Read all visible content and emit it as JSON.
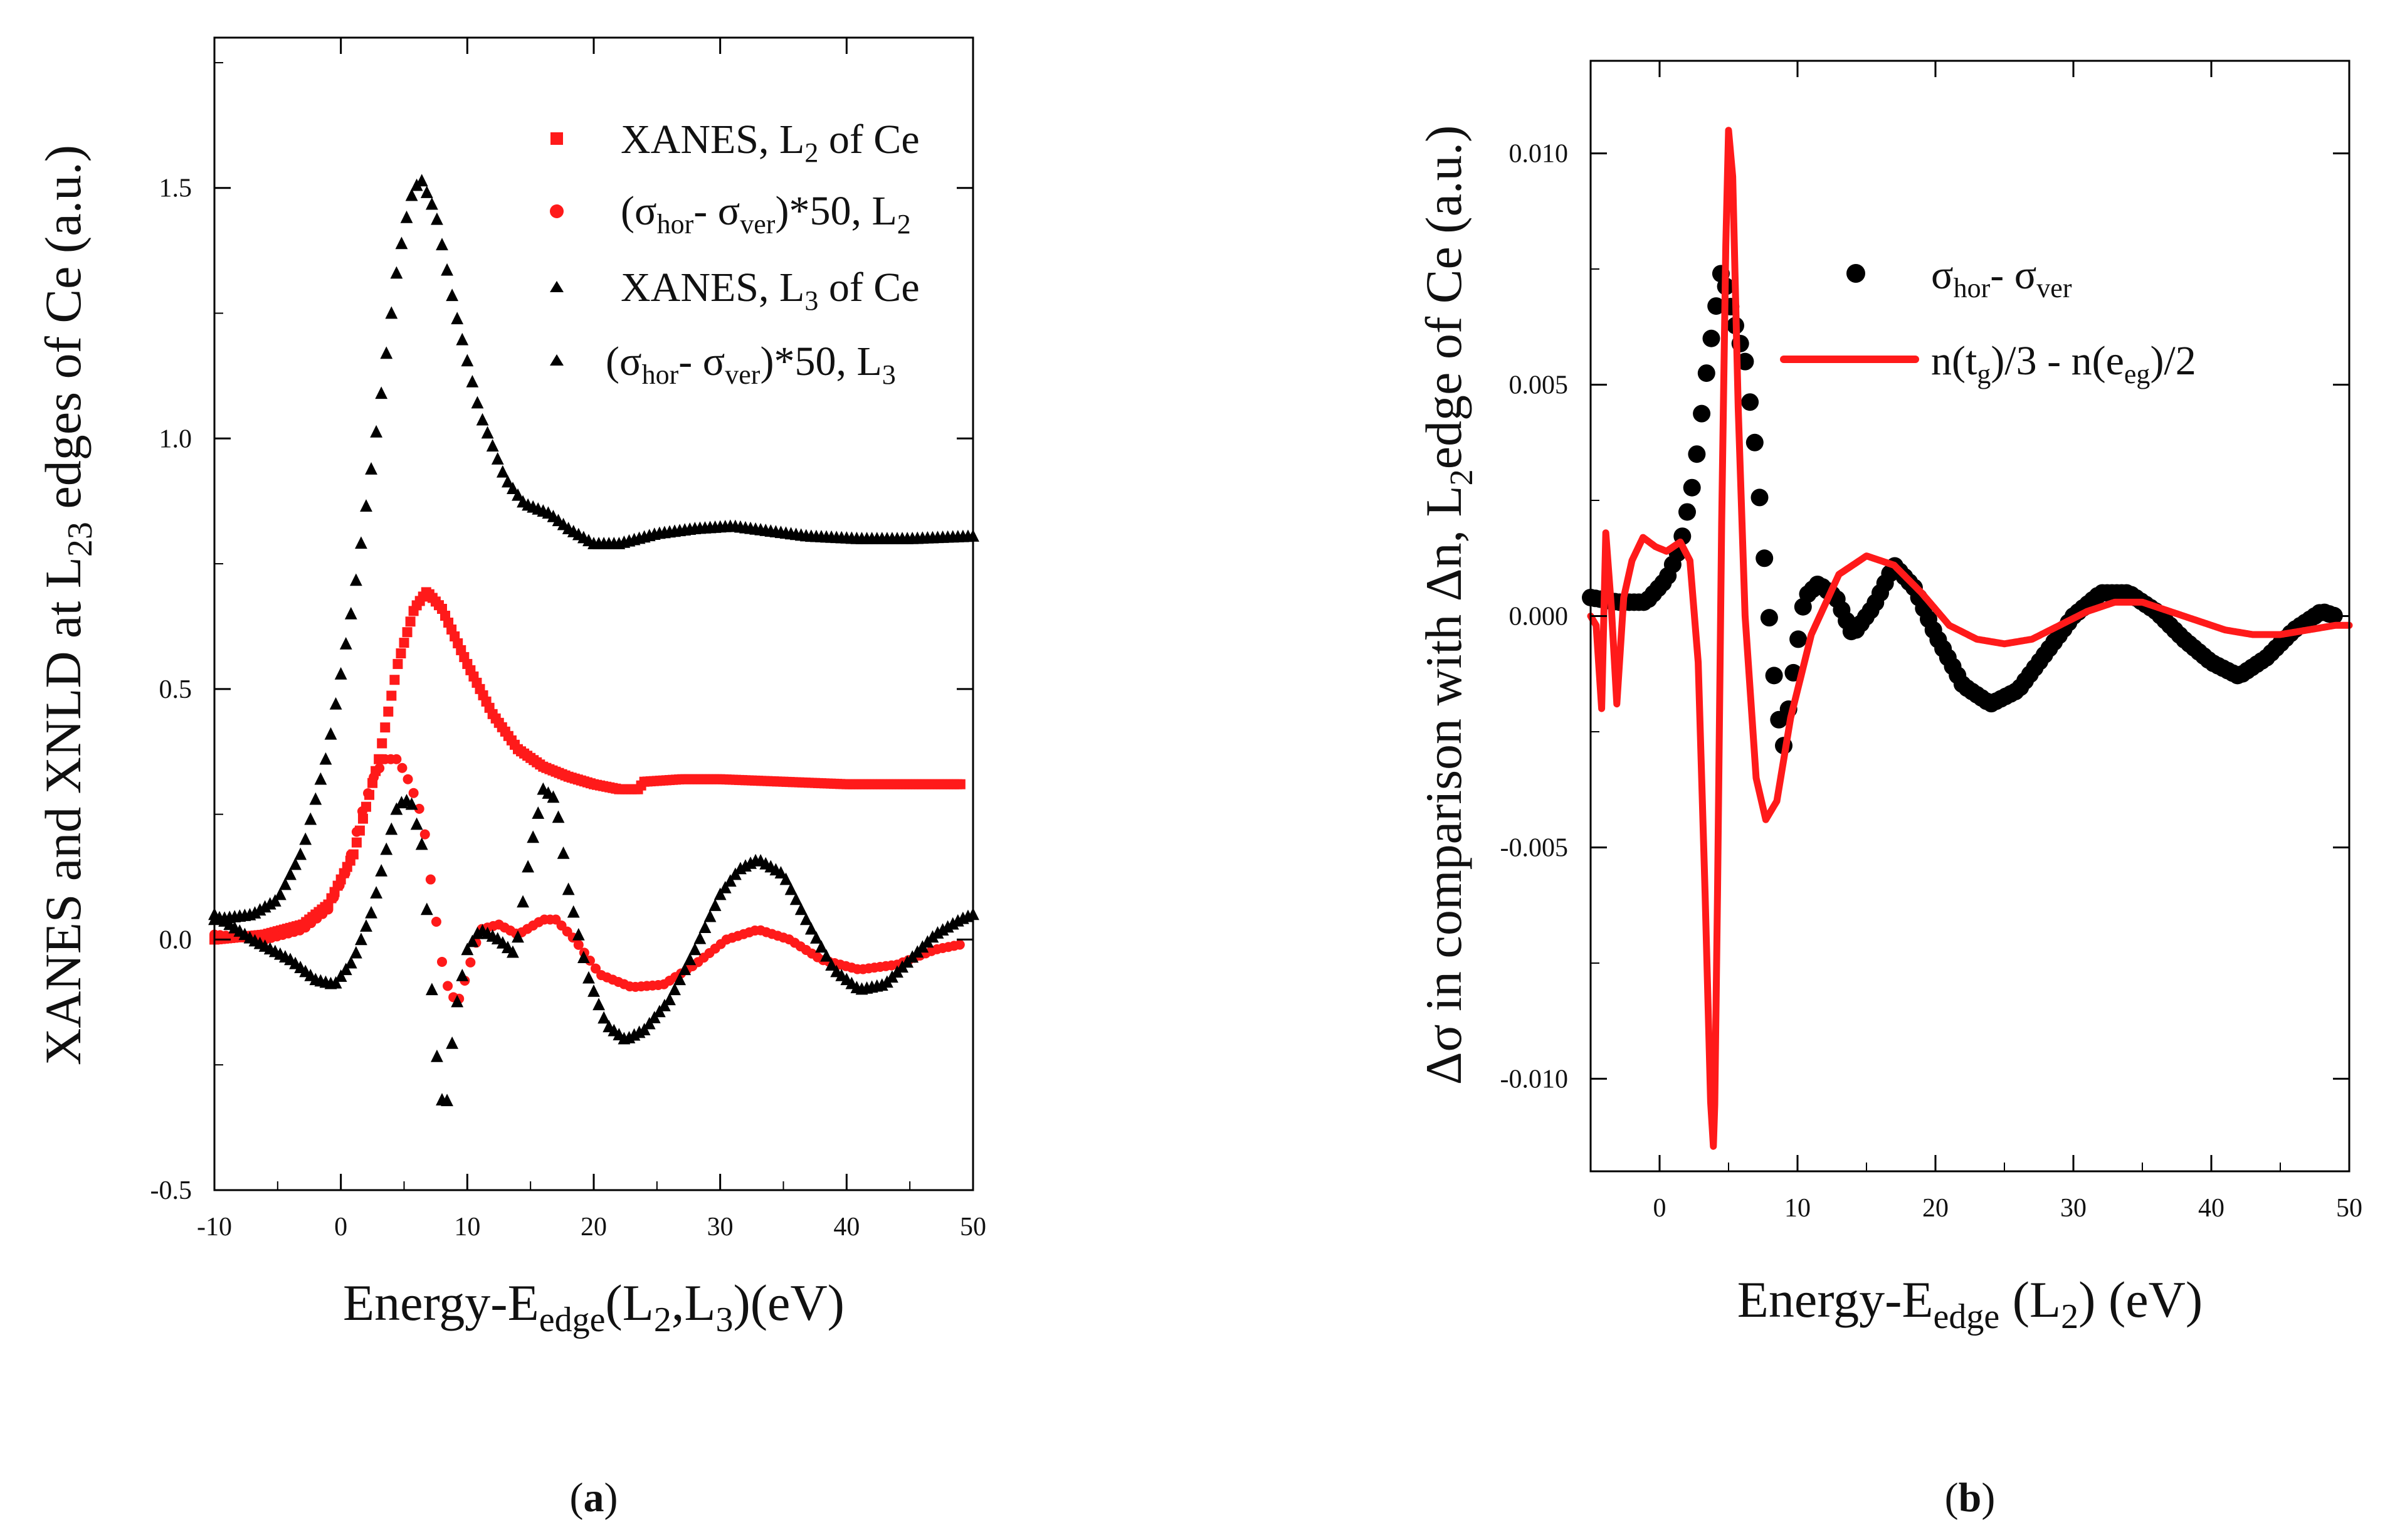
{
  "colors": {
    "red": "#ff1a1a",
    "black": "#000000"
  },
  "chart_data": [
    {
      "type": "scatter",
      "panel": "a",
      "caption": {
        "open": "(",
        "letter": "a",
        "close": ")"
      },
      "xlim": [
        -10,
        50
      ],
      "ylim": [
        -0.5,
        1.8
      ],
      "xticks": [
        "-10",
        "0",
        "10",
        "20",
        "30",
        "40",
        "50"
      ],
      "yticks": [
        "-0.5",
        "0.0",
        "0.5",
        "1.0",
        "1.5"
      ],
      "xlabel": {
        "a": "Energy-E",
        "sub1": "edge",
        "b": "(L",
        "sub2": "2",
        "c": ",L",
        "sub3": "3",
        "d": ")(eV)"
      },
      "ylabel": {
        "a": "XANES and XNLD at L",
        "sub": "23",
        "b": " edges of Ce (a.u.)"
      },
      "legend": [
        {
          "marker": "square",
          "color": "#ff1a1a",
          "parts": [
            "XANES, L",
            "2",
            " of Ce"
          ]
        },
        {
          "marker": "circle",
          "color": "#ff1a1a",
          "parts": [
            "(σ",
            "hor",
            "- σ",
            "ver",
            ")*50, L",
            "2"
          ]
        },
        {
          "marker": "triangle",
          "color": "#000000",
          "parts": [
            "XANES, L",
            "3",
            " of Ce"
          ]
        },
        {
          "marker": "triangle",
          "color": "#000000",
          "parts": [
            "(σ",
            "hor",
            "- σ",
            "ver",
            ")*50, L",
            "3"
          ]
        }
      ],
      "series": [
        {
          "name": "XANES, L3 of Ce",
          "marker": "triangle",
          "color": "#000000",
          "step": 0.4,
          "points": [
            [
              -10,
              0.04
            ],
            [
              -7,
              0.05
            ],
            [
              -5,
              0.08
            ],
            [
              -3,
              0.18
            ],
            [
              -1,
              0.38
            ],
            [
              1,
              0.68
            ],
            [
              3,
              1.05
            ],
            [
              4.5,
              1.35
            ],
            [
              5.5,
              1.48
            ],
            [
              6.3,
              1.52
            ],
            [
              7.5,
              1.45
            ],
            [
              9,
              1.26
            ],
            [
              11,
              1.05
            ],
            [
              13,
              0.92
            ],
            [
              14.5,
              0.87
            ],
            [
              16.5,
              0.85
            ],
            [
              18,
              0.82
            ],
            [
              20,
              0.79
            ],
            [
              22,
              0.79
            ],
            [
              25,
              0.81
            ],
            [
              28,
              0.82
            ],
            [
              31,
              0.825
            ],
            [
              34,
              0.815
            ],
            [
              37,
              0.805
            ],
            [
              41,
              0.8
            ],
            [
              45,
              0.8
            ],
            [
              50,
              0.805
            ]
          ]
        },
        {
          "name": "XANES, L2 of Ce",
          "marker": "square",
          "color": "#ff1a1a",
          "step": 0.25,
          "points": [
            [
              -10,
              0.0
            ],
            [
              -6,
              0.01
            ],
            [
              -3,
              0.03
            ],
            [
              -1,
              0.07
            ],
            [
              1,
              0.17
            ],
            [
              3,
              0.36
            ],
            [
              4.5,
              0.55
            ],
            [
              5.8,
              0.66
            ],
            [
              6.8,
              0.695
            ],
            [
              8,
              0.66
            ],
            [
              10,
              0.55
            ],
            [
              12,
              0.45
            ],
            [
              14,
              0.38
            ],
            [
              16,
              0.345
            ],
            [
              18,
              0.325
            ],
            [
              20,
              0.31
            ],
            [
              22,
              0.3
            ],
            [
              23.5,
              0.3
            ],
            [
              24,
              0.315
            ],
            [
              27,
              0.32
            ],
            [
              30,
              0.32
            ],
            [
              35,
              0.315
            ],
            [
              40,
              0.31
            ],
            [
              45,
              0.31
            ],
            [
              49,
              0.31
            ]
          ]
        },
        {
          "name": "(σhor - σver)*50, L2",
          "marker": "circle",
          "color": "#ff1a1a",
          "step": 0.45,
          "points": [
            [
              -10,
              0.01
            ],
            [
              -6,
              0.0
            ],
            [
              -3,
              0.02
            ],
            [
              -1,
              0.06
            ],
            [
              0.5,
              0.14
            ],
            [
              1.5,
              0.24
            ],
            [
              2.5,
              0.32
            ],
            [
              3.5,
              0.36
            ],
            [
              4.5,
              0.36
            ],
            [
              5.5,
              0.31
            ],
            [
              6.5,
              0.24
            ],
            [
              7.3,
              0.08
            ],
            [
              8.2,
              -0.08
            ],
            [
              9.2,
              -0.13
            ],
            [
              10.2,
              -0.05
            ],
            [
              11,
              0.02
            ],
            [
              12.5,
              0.03
            ],
            [
              14,
              0.01
            ],
            [
              16,
              0.04
            ],
            [
              17,
              0.04
            ],
            [
              18.5,
              0.0
            ],
            [
              20.5,
              -0.07
            ],
            [
              23,
              -0.095
            ],
            [
              25.5,
              -0.09
            ],
            [
              28,
              -0.05
            ],
            [
              30.5,
              0.0
            ],
            [
              33,
              0.02
            ],
            [
              35.5,
              0.0
            ],
            [
              38,
              -0.04
            ],
            [
              41,
              -0.06
            ],
            [
              44,
              -0.05
            ],
            [
              47,
              -0.02
            ],
            [
              49,
              -0.01
            ]
          ]
        },
        {
          "name": "(σhor - σver)*50, L3",
          "marker": "triangle",
          "color": "#000000",
          "step": 0.4,
          "points": [
            [
              -10,
              0.05
            ],
            [
              -7,
              0.0
            ],
            [
              -4,
              -0.04
            ],
            [
              -2,
              -0.08
            ],
            [
              -0.5,
              -0.09
            ],
            [
              1,
              -0.04
            ],
            [
              2.5,
              0.06
            ],
            [
              3.5,
              0.17
            ],
            [
              4.5,
              0.27
            ],
            [
              5.5,
              0.28
            ],
            [
              6.5,
              0.18
            ],
            [
              7.2,
              -0.1
            ],
            [
              7.8,
              -0.3
            ],
            [
              8.3,
              -0.35
            ],
            [
              9,
              -0.15
            ],
            [
              10,
              -0.02
            ],
            [
              11,
              0.02
            ],
            [
              12.5,
              0.0
            ],
            [
              13.8,
              -0.03
            ],
            [
              15,
              0.18
            ],
            [
              16,
              0.3
            ],
            [
              17,
              0.28
            ],
            [
              18,
              0.1
            ],
            [
              19.5,
              -0.07
            ],
            [
              21,
              -0.17
            ],
            [
              22.5,
              -0.2
            ],
            [
              24,
              -0.18
            ],
            [
              26,
              -0.12
            ],
            [
              28,
              -0.02
            ],
            [
              30,
              0.09
            ],
            [
              31.5,
              0.14
            ],
            [
              33,
              0.16
            ],
            [
              35,
              0.13
            ],
            [
              37,
              0.03
            ],
            [
              39,
              -0.06
            ],
            [
              41,
              -0.1
            ],
            [
              43,
              -0.09
            ],
            [
              45,
              -0.04
            ],
            [
              47,
              0.01
            ],
            [
              49,
              0.04
            ],
            [
              50,
              0.05
            ]
          ]
        }
      ]
    },
    {
      "type": "scatter",
      "panel": "b",
      "caption": {
        "open": "(",
        "letter": "b",
        "close": ")"
      },
      "xlim": [
        -5,
        50
      ],
      "ylim": [
        -0.012,
        0.012
      ],
      "xticks": [
        "0",
        "10",
        "20",
        "30",
        "40",
        "50"
      ],
      "yticks": [
        "-0.010",
        "-0.005",
        "0.000",
        "0.005",
        "0.010"
      ],
      "xlabel": {
        "a": "Energy-E",
        "sub1": "edge",
        "b": " (L",
        "sub2": "2",
        "c": ") (eV)"
      },
      "ylabel": {
        "a": "Δσ in comparison with Δn, L",
        "sub": "2",
        "b": "edge of Ce (a.u.)"
      },
      "legend": [
        {
          "marker": "circle",
          "color": "#000000",
          "parts": [
            "σ",
            "hor",
            "- σ",
            "ver"
          ]
        },
        {
          "marker": "line",
          "color": "#ff1a1a",
          "parts": [
            "n(t",
            "g",
            ")/3 - n(e",
            "eg",
            ")/2"
          ]
        }
      ],
      "series": [
        {
          "name": "σhor - σver",
          "marker": "circle",
          "color": "#000000",
          "step": 0.35,
          "points": [
            [
              -5,
              0.0004
            ],
            [
              -3,
              0.0003
            ],
            [
              -1,
              0.0003
            ],
            [
              0.5,
              0.0008
            ],
            [
              1.5,
              0.0015
            ],
            [
              2.5,
              0.003
            ],
            [
              3.5,
              0.0055
            ],
            [
              4.5,
              0.0075
            ],
            [
              5.3,
              0.0065
            ],
            [
              6.2,
              0.0055
            ],
            [
              7,
              0.0035
            ],
            [
              7.8,
              0.0005
            ],
            [
              8.5,
              -0.002
            ],
            [
              9,
              -0.0028
            ],
            [
              9.8,
              -0.001
            ],
            [
              10.5,
              0.0004
            ],
            [
              11.5,
              0.0007
            ],
            [
              12.8,
              0.0004
            ],
            [
              14,
              -0.0004
            ],
            [
              15.5,
              0.0002
            ],
            [
              17,
              0.0011
            ],
            [
              18.5,
              0.0006
            ],
            [
              20,
              -0.0004
            ],
            [
              22,
              -0.0015
            ],
            [
              24,
              -0.0019
            ],
            [
              26,
              -0.0016
            ],
            [
              28,
              -0.0008
            ],
            [
              30,
              0.0
            ],
            [
              32,
              0.0005
            ],
            [
              34,
              0.0005
            ],
            [
              36,
              0.0001
            ],
            [
              38,
              -0.0005
            ],
            [
              40,
              -0.001
            ],
            [
              42,
              -0.0013
            ],
            [
              44,
              -0.0009
            ],
            [
              46,
              -0.0003
            ],
            [
              48,
              0.0001
            ],
            [
              49,
              0.0
            ]
          ]
        },
        {
          "name": "n(tg)/3 - n(eeg)/2",
          "marker": "line",
          "color": "#ff1a1a",
          "points": [
            [
              -5,
              0.0
            ],
            [
              -4.6,
              -0.0002
            ],
            [
              -4.2,
              -0.002
            ],
            [
              -3.9,
              0.0018
            ],
            [
              -3.5,
              0.0002
            ],
            [
              -3.1,
              -0.0019
            ],
            [
              -2.6,
              0.0004
            ],
            [
              -2.0,
              0.0012
            ],
            [
              -1.2,
              0.0017
            ],
            [
              -0.3,
              0.0015
            ],
            [
              0.5,
              0.0014
            ],
            [
              1.5,
              0.0016
            ],
            [
              2.2,
              0.0012
            ],
            [
              2.8,
              -0.001
            ],
            [
              3.3,
              -0.006
            ],
            [
              3.7,
              -0.0105
            ],
            [
              3.95,
              -0.0117
            ],
            [
              4.2,
              -0.006
            ],
            [
              4.5,
              0.002
            ],
            [
              4.8,
              0.008
            ],
            [
              5.0,
              0.0105
            ],
            [
              5.3,
              0.0095
            ],
            [
              5.7,
              0.0045
            ],
            [
              6.2,
              0.0
            ],
            [
              7.0,
              -0.0035
            ],
            [
              7.7,
              -0.0044
            ],
            [
              8.5,
              -0.004
            ],
            [
              9.5,
              -0.0022
            ],
            [
              11,
              -0.0004
            ],
            [
              13,
              0.0009
            ],
            [
              15,
              0.0013
            ],
            [
              17,
              0.0011
            ],
            [
              19,
              0.0005
            ],
            [
              21,
              -0.0002
            ],
            [
              23,
              -0.0005
            ],
            [
              25,
              -0.0006
            ],
            [
              27,
              -0.0005
            ],
            [
              29,
              -0.0002
            ],
            [
              31,
              0.0001
            ],
            [
              33,
              0.0003
            ],
            [
              35,
              0.0003
            ],
            [
              37,
              0.0001
            ],
            [
              39,
              -0.0001
            ],
            [
              41,
              -0.0003
            ],
            [
              43,
              -0.0004
            ],
            [
              45,
              -0.0004
            ],
            [
              47,
              -0.0003
            ],
            [
              49,
              -0.0002
            ],
            [
              50,
              -0.0002
            ]
          ]
        }
      ]
    }
  ]
}
